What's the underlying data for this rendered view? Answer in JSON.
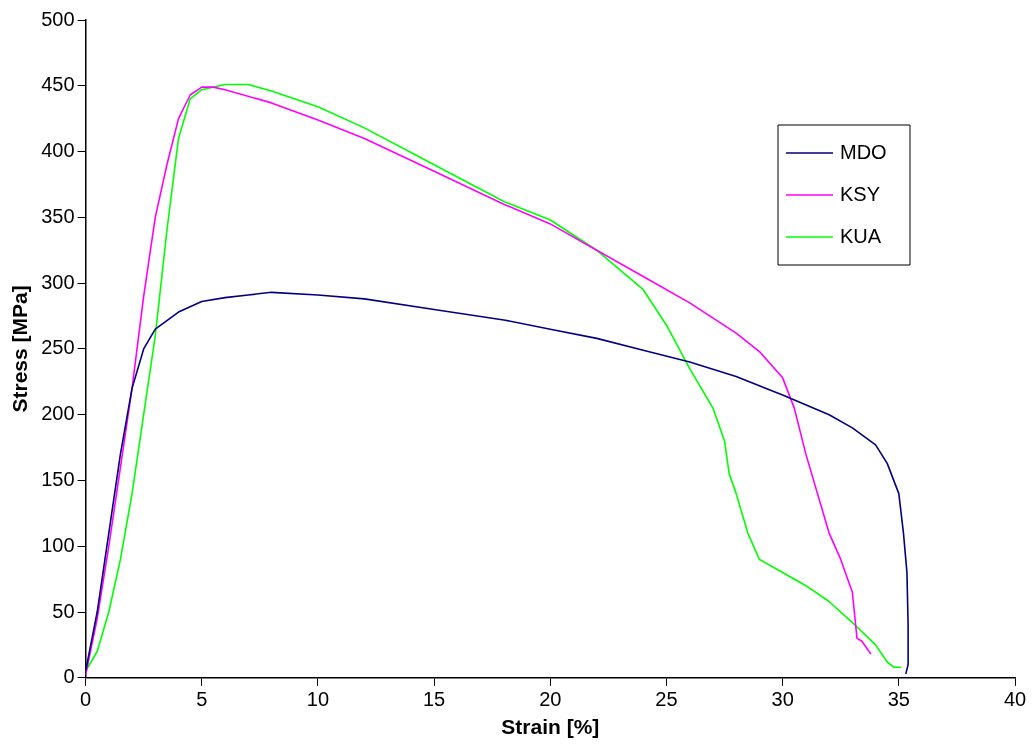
{
  "chart_data": {
    "type": "line",
    "xlabel": "Strain [%]",
    "ylabel": "Stress [MPa]",
    "xlim": [
      0,
      40
    ],
    "xticks": [
      0,
      5,
      10,
      15,
      20,
      25,
      30,
      35,
      40
    ],
    "ylim": [
      0,
      500
    ],
    "yticks": [
      0,
      50,
      100,
      150,
      200,
      250,
      300,
      350,
      400,
      450,
      500
    ],
    "grid": false,
    "legend": "right",
    "marker": "none",
    "line_style": "solid",
    "series": [
      {
        "name": "MDO",
        "color": "#000080",
        "x": [
          0,
          0.5,
          1,
          1.5,
          2,
          2.5,
          3,
          4,
          5,
          6,
          7,
          8,
          10,
          12,
          15,
          18,
          20,
          22,
          24,
          26,
          28,
          30,
          32,
          33,
          34,
          34.5,
          35,
          35.2,
          35.35,
          35.4,
          35.4,
          35.3
        ],
        "values": [
          5,
          50,
          110,
          170,
          220,
          250,
          265,
          278,
          286,
          289,
          291,
          293,
          291,
          288,
          280,
          272,
          265,
          258,
          249,
          240,
          229,
          215,
          200,
          190,
          177,
          163,
          140,
          110,
          80,
          40,
          10,
          3
        ]
      },
      {
        "name": "KSY",
        "color": "#ff00ff",
        "x": [
          0,
          0.5,
          1,
          1.5,
          2,
          2.5,
          3,
          3.5,
          4,
          4.5,
          5,
          5.5,
          6,
          8,
          10,
          12,
          15,
          18,
          20,
          22,
          24,
          26,
          28,
          29,
          30,
          30.5,
          31,
          31.5,
          32,
          32.5,
          33,
          33.2,
          33.4,
          33.8
        ],
        "values": [
          2,
          45,
          100,
          160,
          220,
          290,
          350,
          390,
          425,
          443,
          449,
          449,
          447,
          437,
          424,
          410,
          385,
          360,
          345,
          325,
          305,
          285,
          262,
          248,
          228,
          205,
          170,
          140,
          110,
          90,
          65,
          30,
          28,
          18
        ]
      },
      {
        "name": "KUA",
        "color": "#00ff00",
        "x": [
          0,
          0.5,
          1,
          1.5,
          2,
          2.5,
          3,
          3.5,
          4,
          4.5,
          5,
          6,
          7,
          8,
          10,
          12,
          15,
          18,
          20,
          22,
          24,
          25,
          26,
          27,
          27.5,
          27.7,
          28,
          28.5,
          29,
          30,
          31,
          32,
          33,
          34,
          34.5,
          34.8,
          35.1
        ],
        "values": [
          5,
          20,
          50,
          90,
          140,
          200,
          260,
          340,
          410,
          440,
          447,
          451,
          451,
          446,
          434,
          418,
          390,
          362,
          348,
          325,
          295,
          268,
          235,
          205,
          180,
          155,
          140,
          110,
          90,
          80,
          70,
          58,
          42,
          25,
          12,
          8,
          8
        ]
      }
    ]
  }
}
